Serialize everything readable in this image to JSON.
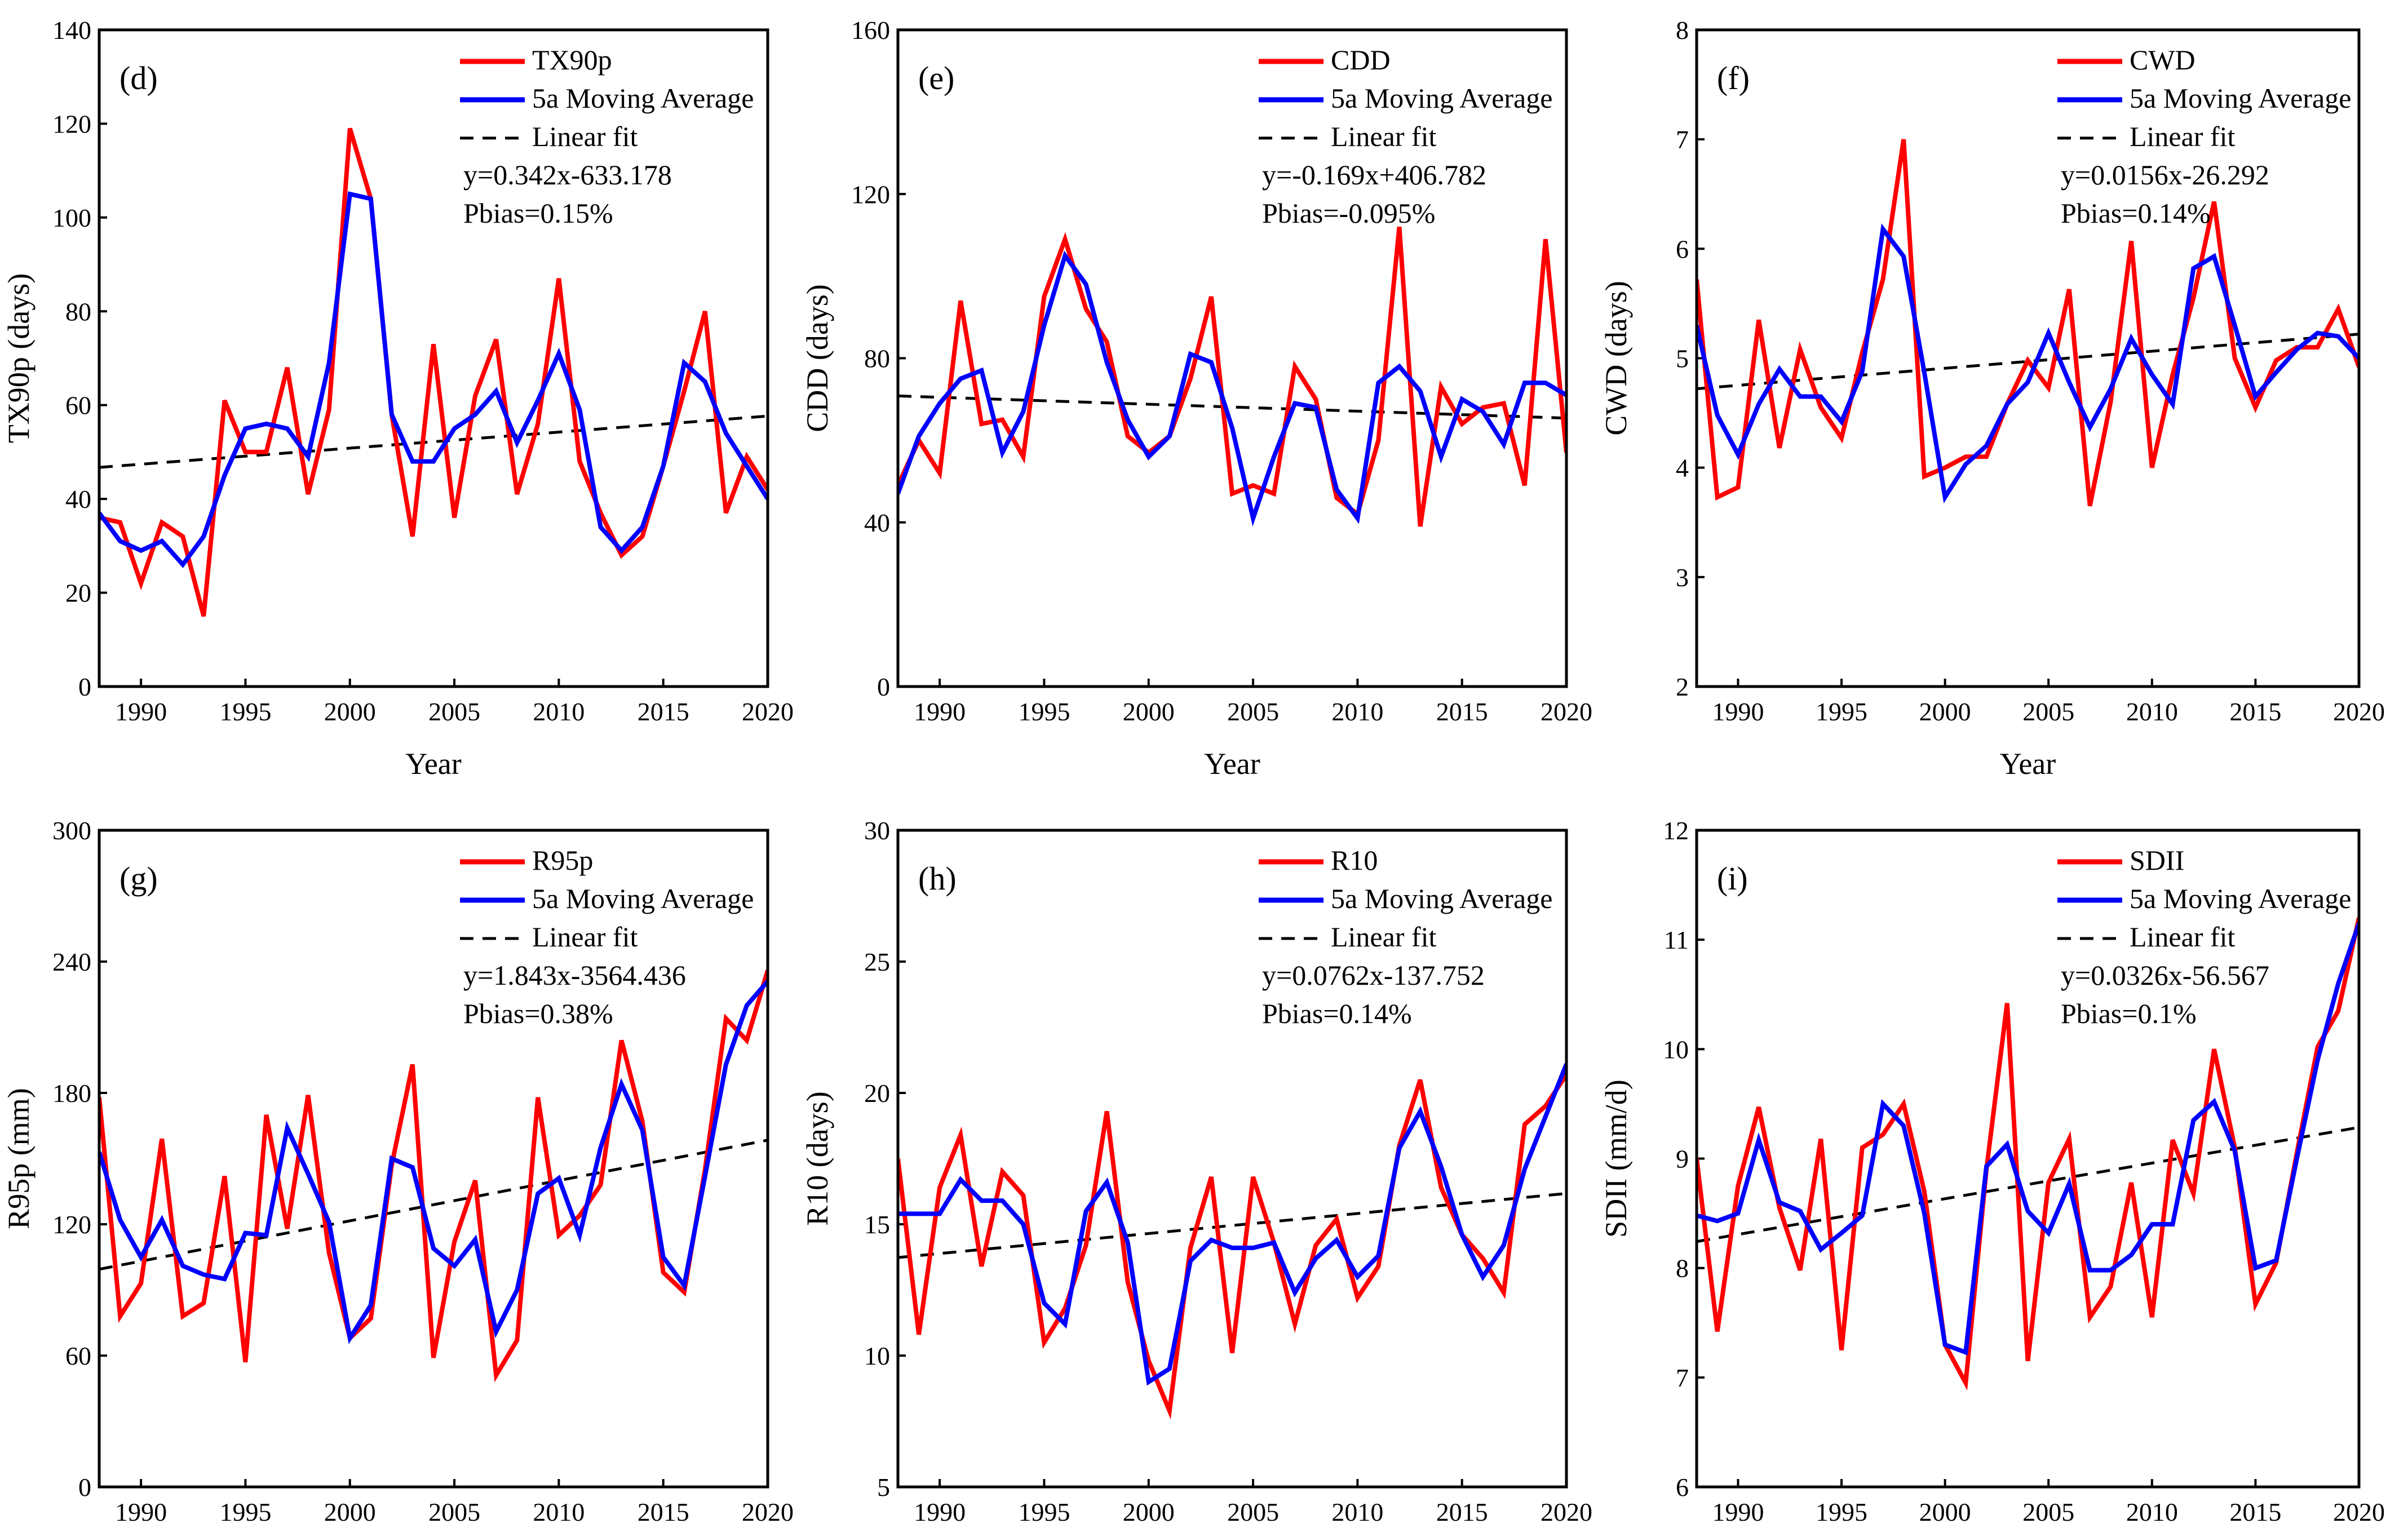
{
  "colors": {
    "series": "#ff0000",
    "moving_average": "#0000ff",
    "fit": "#000000"
  },
  "chart_data": [
    {
      "type": "line",
      "panel_label": "(d)",
      "xlabel": "Year",
      "ylabel": "TX90p (days)",
      "xlim": [
        1988,
        2020
      ],
      "ylim": [
        0,
        140
      ],
      "yticks": [
        0,
        20,
        40,
        60,
        80,
        100,
        120,
        140
      ],
      "xticks": [
        1990,
        1995,
        2000,
        2005,
        2010,
        2015,
        2020
      ],
      "legend": {
        "placement": "top-right",
        "series_label": "TX90p",
        "ma_label": "5a Moving Average",
        "fit_label": "Linear fit",
        "equation": "y=0.342x-633.178",
        "pbias": "Pbias=0.15%"
      },
      "fit": {
        "slope": 0.342,
        "intercept": -633.178
      },
      "x_start": 1988,
      "series": [
        {
          "name": "TX90p",
          "values": [
            36,
            35,
            22,
            35,
            32,
            15,
            61,
            50,
            50,
            68,
            41,
            59,
            119,
            104,
            58,
            32,
            73,
            36,
            62,
            74,
            41,
            56,
            87,
            48,
            37,
            28,
            32,
            47,
            63,
            80,
            37,
            49,
            42
          ]
        },
        {
          "name": "5a Moving Average",
          "values": [
            37,
            31,
            29,
            31,
            26,
            32,
            45,
            55,
            56,
            55,
            49,
            69,
            105,
            104,
            58,
            48,
            48,
            55,
            58,
            63,
            52,
            61,
            71,
            59,
            34,
            29,
            34,
            47,
            69,
            65,
            54,
            47,
            40
          ]
        }
      ]
    },
    {
      "type": "line",
      "panel_label": "(e)",
      "xlabel": "Year",
      "ylabel": "CDD (days)",
      "xlim": [
        1988,
        2020
      ],
      "ylim": [
        0,
        160
      ],
      "yticks": [
        0,
        40,
        80,
        120,
        160
      ],
      "xticks": [
        1990,
        1995,
        2000,
        2005,
        2010,
        2015,
        2020
      ],
      "legend": {
        "placement": "top-right",
        "series_label": "CDD",
        "ma_label": "5a Moving Average",
        "fit_label": "Linear fit",
        "equation": "y=-0.169x+406.782",
        "pbias": "Pbias=-0.095%"
      },
      "fit": {
        "slope": -0.169,
        "intercept": 406.782
      },
      "x_start": 1988,
      "series": [
        {
          "name": "CDD",
          "values": [
            49,
            60,
            52,
            94,
            64,
            65,
            56,
            95,
            109,
            92,
            84,
            61,
            57,
            61,
            75,
            95,
            47,
            49,
            47,
            78,
            70,
            46,
            42,
            60,
            112,
            39,
            73,
            64,
            68,
            69,
            49,
            109,
            57
          ]
        },
        {
          "name": "5a Moving Average",
          "values": [
            47,
            61,
            69,
            75,
            77,
            57,
            67,
            88,
            105,
            98,
            79,
            65,
            56,
            61,
            81,
            79,
            63,
            41,
            56,
            69,
            68,
            48,
            41,
            74,
            78,
            72,
            56,
            70,
            67,
            59,
            74,
            74,
            71
          ]
        }
      ]
    },
    {
      "type": "line",
      "panel_label": "(f)",
      "xlabel": "Year",
      "ylabel": "CWD (days)",
      "xlim": [
        1988,
        2020
      ],
      "ylim": [
        2,
        8
      ],
      "yticks": [
        2,
        3,
        4,
        5,
        6,
        7,
        8
      ],
      "xticks": [
        1990,
        1995,
        2000,
        2005,
        2010,
        2015,
        2020
      ],
      "legend": {
        "placement": "top-right",
        "series_label": "CWD",
        "ma_label": "5a Moving Average",
        "fit_label": "Linear fit",
        "equation": "y=0.0156x-26.292",
        "pbias": "Pbias=0.14%"
      },
      "fit": {
        "slope": 0.0156,
        "intercept": -26.292
      },
      "x_start": 1988,
      "series": [
        {
          "name": "CWD",
          "values": [
            5.72,
            3.73,
            3.82,
            5.35,
            4.18,
            5.08,
            4.55,
            4.27,
            5.05,
            5.72,
            7.0,
            3.92,
            4.0,
            4.1,
            4.1,
            4.58,
            4.98,
            4.73,
            5.63,
            3.65,
            4.6,
            6.07,
            4.0,
            4.85,
            5.55,
            6.43,
            5.0,
            4.55,
            4.98,
            5.1,
            5.1,
            5.45,
            4.92
          ]
        },
        {
          "name": "5a Moving Average",
          "values": [
            5.3,
            4.48,
            4.12,
            4.58,
            4.9,
            4.65,
            4.65,
            4.42,
            4.88,
            6.18,
            5.93,
            4.87,
            3.73,
            4.03,
            4.2,
            4.58,
            4.78,
            5.23,
            4.78,
            4.37,
            4.72,
            5.18,
            4.85,
            4.58,
            5.82,
            5.93,
            5.3,
            4.65,
            4.87,
            5.08,
            5.23,
            5.2,
            5.0
          ]
        }
      ]
    },
    {
      "type": "line",
      "panel_label": "(g)",
      "xlabel": "Year",
      "ylabel": "R95p (mm)",
      "xlim": [
        1988,
        2020
      ],
      "ylim": [
        0,
        300
      ],
      "yticks": [
        0,
        60,
        120,
        180,
        240,
        300
      ],
      "xticks": [
        1990,
        1995,
        2000,
        2005,
        2010,
        2015,
        2020
      ],
      "legend": {
        "placement": "top-right",
        "series_label": "R95p",
        "ma_label": "5a Moving Average",
        "fit_label": "Linear fit",
        "equation": "y=1.843x-3564.436",
        "pbias": "Pbias=0.38%"
      },
      "fit": {
        "slope": 1.843,
        "intercept": -3564.436
      },
      "x_start": 1988,
      "series": [
        {
          "name": "R95p",
          "values": [
            178,
            78,
            93,
            159,
            78,
            84,
            142,
            57,
            170,
            118,
            179,
            107,
            68,
            77,
            147,
            193,
            59,
            112,
            140,
            51,
            67,
            178,
            115,
            124,
            138,
            204,
            167,
            98,
            89,
            145,
            214,
            204,
            236
          ]
        },
        {
          "name": "5a Moving Average",
          "values": [
            153,
            122,
            105,
            122,
            101,
            97,
            95,
            116,
            115,
            164,
            143,
            121,
            68,
            83,
            150,
            146,
            109,
            101,
            113,
            71,
            90,
            134,
            141,
            115,
            155,
            184,
            163,
            105,
            92,
            142,
            193,
            220,
            231
          ]
        }
      ]
    },
    {
      "type": "line",
      "panel_label": "(h)",
      "xlabel": "Year",
      "ylabel": "R10 (days)",
      "xlim": [
        1988,
        2020
      ],
      "ylim": [
        5,
        30
      ],
      "yticks": [
        5,
        10,
        15,
        20,
        25,
        30
      ],
      "xticks": [
        1990,
        1995,
        2000,
        2005,
        2010,
        2015,
        2020
      ],
      "legend": {
        "placement": "top-right",
        "series_label": "R10",
        "ma_label": "5a Moving Average",
        "fit_label": "Linear fit",
        "equation": "y=0.0762x-137.752",
        "pbias": "Pbias=0.14%"
      },
      "fit": {
        "slope": 0.0762,
        "intercept": -137.752
      },
      "x_start": 1988,
      "series": [
        {
          "name": "R10",
          "values": [
            17.5,
            10.8,
            16.4,
            18.4,
            13.4,
            17.0,
            16.1,
            10.5,
            11.8,
            14.2,
            19.3,
            12.8,
            9.8,
            7.9,
            14.1,
            16.8,
            10.1,
            16.8,
            14.3,
            11.2,
            14.2,
            15.2,
            12.2,
            13.4,
            18.0,
            20.5,
            16.4,
            14.6,
            13.7,
            12.4,
            18.8,
            19.5,
            20.7
          ]
        },
        {
          "name": "5a Moving Average",
          "values": [
            15.4,
            15.4,
            15.4,
            16.7,
            15.9,
            15.9,
            15.0,
            12.0,
            11.2,
            15.5,
            16.6,
            14.3,
            9.0,
            9.5,
            13.6,
            14.4,
            14.1,
            14.1,
            14.3,
            12.4,
            13.7,
            14.4,
            13.0,
            13.8,
            17.9,
            19.3,
            17.2,
            14.6,
            13.0,
            14.2,
            17.1,
            19.1,
            21.1
          ]
        }
      ]
    },
    {
      "type": "line",
      "panel_label": "(i)",
      "xlabel": "Year",
      "ylabel": "SDII (mm/d)",
      "xlim": [
        1988,
        2020
      ],
      "ylim": [
        6,
        12
      ],
      "yticks": [
        6,
        7,
        8,
        9,
        10,
        11,
        12
      ],
      "xticks": [
        1990,
        1995,
        2000,
        2005,
        2010,
        2015,
        2020
      ],
      "legend": {
        "placement": "top-right",
        "series_label": "SDII",
        "ma_label": "5a Moving Average",
        "fit_label": "Linear fit",
        "equation": "y=0.0326x-56.567",
        "pbias": "Pbias=0.1%"
      },
      "fit": {
        "slope": 0.0326,
        "intercept": -56.567
      },
      "x_start": 1988,
      "series": [
        {
          "name": "SDII",
          "values": [
            9.0,
            7.42,
            8.75,
            9.47,
            8.55,
            7.98,
            9.18,
            7.25,
            9.1,
            9.22,
            9.5,
            8.7,
            7.3,
            6.95,
            8.9,
            10.42,
            7.15,
            8.78,
            9.18,
            7.55,
            7.83,
            8.78,
            7.55,
            9.17,
            8.68,
            10.0,
            9.1,
            7.67,
            8.05,
            9.05,
            10.02,
            10.35,
            11.2
          ]
        },
        {
          "name": "5a Moving Average",
          "values": [
            8.48,
            8.43,
            8.5,
            9.17,
            8.6,
            8.52,
            8.17,
            8.32,
            8.48,
            9.5,
            9.3,
            8.5,
            7.3,
            7.23,
            8.93,
            9.13,
            8.52,
            8.32,
            8.77,
            7.98,
            7.98,
            8.12,
            8.4,
            8.4,
            9.35,
            9.52,
            9.07,
            8.0,
            8.07,
            9.0,
            9.9,
            10.6,
            11.15
          ]
        }
      ]
    }
  ]
}
